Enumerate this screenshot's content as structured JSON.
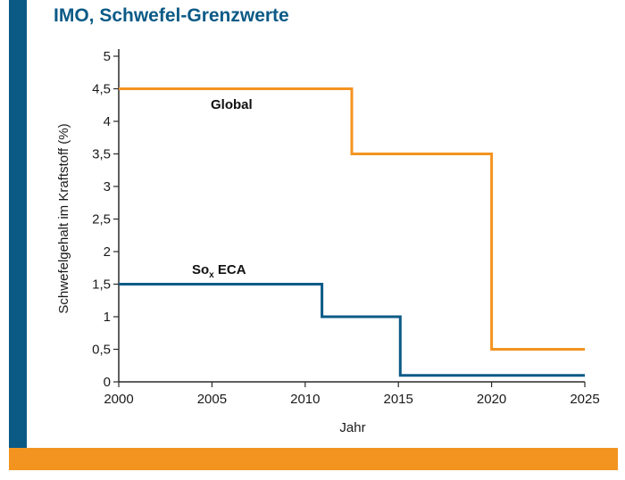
{
  "colors": {
    "brand_blue": "#0b5a86",
    "accent_orange": "#f39420"
  },
  "chart_data": {
    "type": "line",
    "step": true,
    "title": "IMO, Schwefel-Grenzwerte",
    "xlabel": "Jahr",
    "ylabel": "Schwefelgehalt im Kraftstoff (%)",
    "xlim": [
      2000,
      2025
    ],
    "ylim": [
      0,
      5
    ],
    "x_ticks": [
      "2000",
      "2005",
      "2010",
      "2015",
      "2020",
      "2025"
    ],
    "y_ticks": [
      "0",
      "0,5",
      "1",
      "1,5",
      "2",
      "2,5",
      "3",
      "3,5",
      "4",
      "4,5",
      "5"
    ],
    "grid": false,
    "series": [
      {
        "name": "Global",
        "color": "#f39420",
        "x": [
          2000,
          2012.5,
          2020,
          2025
        ],
        "y": [
          4.5,
          3.5,
          0.5,
          0.5
        ]
      },
      {
        "name_main": "So",
        "name_sub": "x",
        "name_suffix": " ECA",
        "color": "#0b5a86",
        "x": [
          2000,
          2010.9,
          2015.1,
          2025
        ],
        "y": [
          1.5,
          1.0,
          0.1,
          0.1
        ]
      }
    ]
  }
}
